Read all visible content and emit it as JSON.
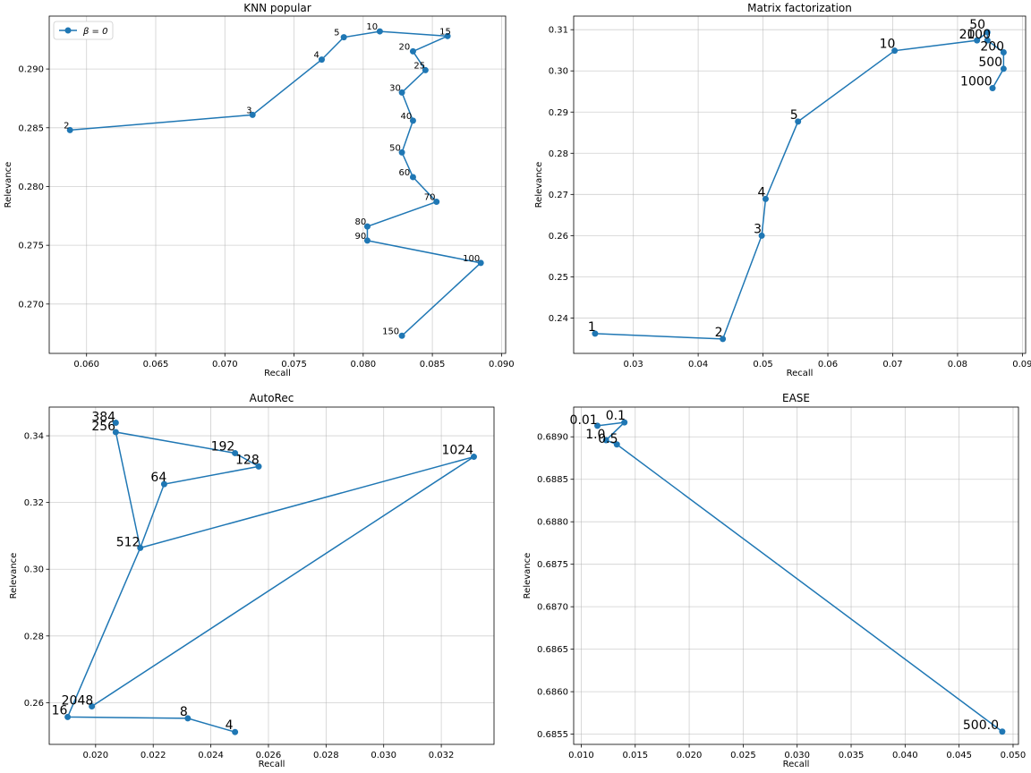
{
  "chart_data": [
    {
      "type": "line",
      "title": "KNN popular",
      "xlabel": "Recall",
      "ylabel": "Relevance",
      "xlim": [
        0.0573,
        0.0903
      ],
      "ylim": [
        0.2658,
        0.2945
      ],
      "xticks": [
        0.06,
        0.065,
        0.07,
        0.075,
        0.08,
        0.085,
        0.09
      ],
      "xtick_labels": [
        "0.060",
        "0.065",
        "0.070",
        "0.075",
        "0.080",
        "0.085",
        "0.090"
      ],
      "yticks": [
        0.27,
        0.275,
        0.28,
        0.285,
        0.29
      ],
      "ytick_labels": [
        "0.270",
        "0.275",
        "0.280",
        "0.285",
        "0.290"
      ],
      "grid": true,
      "legend": {
        "position": "top-left",
        "label": "β = 0"
      },
      "color": "#1f77b4",
      "point_label_size": "small",
      "points": [
        {
          "label": "2",
          "x": 0.0588,
          "y": 0.2848
        },
        {
          "label": "3",
          "x": 0.072,
          "y": 0.2861
        },
        {
          "label": "4",
          "x": 0.077,
          "y": 0.2908
        },
        {
          "label": "5",
          "x": 0.0786,
          "y": 0.2927
        },
        {
          "label": "10",
          "x": 0.0812,
          "y": 0.2932
        },
        {
          "label": "15",
          "x": 0.0861,
          "y": 0.2928
        },
        {
          "label": "20",
          "x": 0.0836,
          "y": 0.2915
        },
        {
          "label": "25",
          "x": 0.0845,
          "y": 0.2899
        },
        {
          "label": "30",
          "x": 0.0828,
          "y": 0.288
        },
        {
          "label": "40",
          "x": 0.0836,
          "y": 0.2856
        },
        {
          "label": "50",
          "x": 0.0828,
          "y": 0.2829
        },
        {
          "label": "60",
          "x": 0.0836,
          "y": 0.2808
        },
        {
          "label": "70",
          "x": 0.0853,
          "y": 0.2787
        },
        {
          "label": "80",
          "x": 0.0803,
          "y": 0.2766
        },
        {
          "label": "90",
          "x": 0.0803,
          "y": 0.2754
        },
        {
          "label": "100",
          "x": 0.0885,
          "y": 0.2735
        },
        {
          "label": "150",
          "x": 0.0828,
          "y": 0.2673
        }
      ]
    },
    {
      "type": "line",
      "title": "Matrix factorization",
      "xlabel": "Recall",
      "ylabel": "Relevance",
      "xlim": [
        0.0208,
        0.0905
      ],
      "ylim": [
        0.2314,
        0.3133
      ],
      "xticks": [
        0.03,
        0.04,
        0.05,
        0.06,
        0.07,
        0.08,
        0.09
      ],
      "xtick_labels": [
        "0.03",
        "0.04",
        "0.05",
        "0.06",
        "0.07",
        "0.08",
        "0.09"
      ],
      "yticks": [
        0.24,
        0.25,
        0.26,
        0.27,
        0.28,
        0.29,
        0.3,
        0.31
      ],
      "ytick_labels": [
        "0.24",
        "0.25",
        "0.26",
        "0.27",
        "0.28",
        "0.29",
        "0.30",
        "0.31"
      ],
      "grid": true,
      "color": "#1f77b4",
      "point_label_size": "large",
      "points": [
        {
          "label": "1",
          "x": 0.0241,
          "y": 0.2362
        },
        {
          "label": "2",
          "x": 0.0438,
          "y": 0.2349
        },
        {
          "label": "3",
          "x": 0.0498,
          "y": 0.26
        },
        {
          "label": "4",
          "x": 0.0504,
          "y": 0.2689
        },
        {
          "label": "5",
          "x": 0.0554,
          "y": 0.2877
        },
        {
          "label": "10",
          "x": 0.0703,
          "y": 0.3049
        },
        {
          "label": "20",
          "x": 0.083,
          "y": 0.3074
        },
        {
          "label": "50",
          "x": 0.0846,
          "y": 0.3094
        },
        {
          "label": "100",
          "x": 0.0846,
          "y": 0.3074
        },
        {
          "label": "200",
          "x": 0.0871,
          "y": 0.3045
        },
        {
          "label": "500",
          "x": 0.0871,
          "y": 0.3005
        },
        {
          "label": "1000",
          "x": 0.0854,
          "y": 0.2958
        }
      ]
    },
    {
      "type": "line",
      "title": "AutoRec",
      "xlabel": "Recall",
      "ylabel": "Relevance",
      "xlim": [
        0.01839,
        0.03383
      ],
      "ylim": [
        0.2475,
        0.3486
      ],
      "xticks": [
        0.02,
        0.022,
        0.024,
        0.026,
        0.028,
        0.03,
        0.032
      ],
      "xtick_labels": [
        "0.020",
        "0.022",
        "0.024",
        "0.026",
        "0.028",
        "0.030",
        "0.032"
      ],
      "yticks": [
        0.26,
        0.28,
        0.3,
        0.32,
        0.34
      ],
      "ytick_labels": [
        "0.26",
        "0.28",
        "0.30",
        "0.32",
        "0.34"
      ],
      "grid": true,
      "color": "#1f77b4",
      "point_label_size": "large",
      "points": [
        {
          "label": "4",
          "x": 0.02484,
          "y": 0.2512
        },
        {
          "label": "8",
          "x": 0.0232,
          "y": 0.2553
        },
        {
          "label": "16",
          "x": 0.01903,
          "y": 0.2557
        },
        {
          "label": "2048",
          "x": 0.01987,
          "y": 0.2589
        },
        {
          "label": "1024",
          "x": 0.03313,
          "y": 0.3337
        },
        {
          "label": "512",
          "x": 0.02155,
          "y": 0.3064
        },
        {
          "label": "64",
          "x": 0.02238,
          "y": 0.3255
        },
        {
          "label": "128",
          "x": 0.02566,
          "y": 0.3308
        },
        {
          "label": "192",
          "x": 0.02484,
          "y": 0.3348
        },
        {
          "label": "256",
          "x": 0.0207,
          "y": 0.3411
        },
        {
          "label": "384",
          "x": 0.0207,
          "y": 0.3439
        }
      ],
      "path_order": [
        "4",
        "8",
        "16",
        "512",
        "256",
        "192",
        "128",
        "64",
        "512",
        "1024",
        "2048"
      ]
    },
    {
      "type": "line",
      "title": "EASE",
      "xlabel": "Recall",
      "ylabel": "Relevance",
      "xlim": [
        0.0093,
        0.0505
      ],
      "ylim": [
        0.68538,
        0.68935
      ],
      "xticks": [
        0.01,
        0.015,
        0.02,
        0.025,
        0.03,
        0.035,
        0.04,
        0.045,
        0.05
      ],
      "xtick_labels": [
        "0.010",
        "0.015",
        "0.020",
        "0.025",
        "0.030",
        "0.035",
        "0.040",
        "0.045",
        "0.050"
      ],
      "yticks": [
        0.6855,
        0.686,
        0.6865,
        0.687,
        0.6875,
        0.688,
        0.6885,
        0.689
      ],
      "ytick_labels": [
        "0.6855",
        "0.6860",
        "0.6865",
        "0.6870",
        "0.6875",
        "0.6880",
        "0.6885",
        "0.6890"
      ],
      "grid": true,
      "color": "#1f77b4",
      "point_label_size": "large",
      "points": [
        {
          "label": "0.01",
          "x": 0.0115,
          "y": 0.68913
        },
        {
          "label": "0.1",
          "x": 0.014,
          "y": 0.68917
        },
        {
          "label": "1.0",
          "x": 0.0123,
          "y": 0.68896
        },
        {
          "label": "0.5",
          "x": 0.0133,
          "y": 0.68891
        },
        {
          "label": "500.0",
          "x": 0.049,
          "y": 0.68553
        }
      ],
      "path_order": [
        "0.01",
        "0.1",
        "1.0",
        "0.5",
        "500.0"
      ]
    }
  ]
}
